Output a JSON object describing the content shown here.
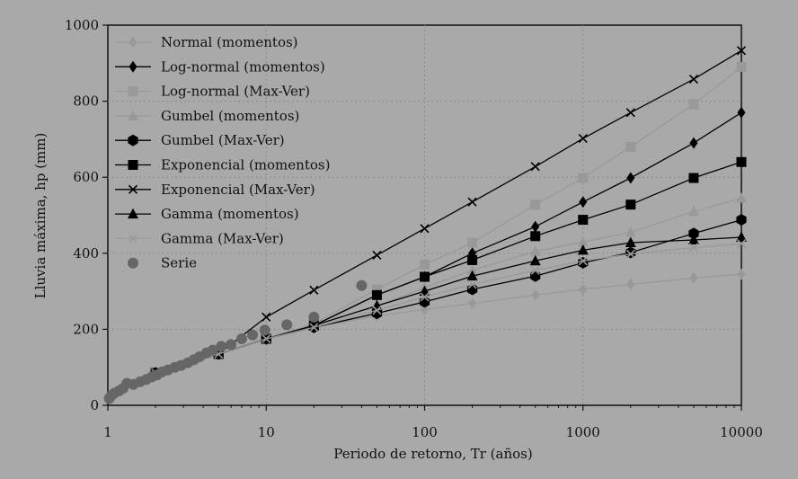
{
  "chart_data": {
    "type": "line",
    "title": "",
    "xlabel": "Periodo de retorno, Tr (años)",
    "ylabel": "Lluvia máxima, hp (mm)",
    "xscale": "log",
    "xlim": [
      1,
      10000
    ],
    "ylim": [
      0,
      1000
    ],
    "x_ticks": [
      1,
      10,
      100,
      1000,
      10000
    ],
    "x_tick_labels": [
      "1",
      "10",
      "100",
      "1000",
      "10000"
    ],
    "y_ticks": [
      0,
      200,
      400,
      600,
      800,
      1000
    ],
    "y_tick_labels": [
      "0",
      "200",
      "400",
      "600",
      "800",
      "1000"
    ],
    "grid": true,
    "legend_position": "top-left",
    "x": [
      2,
      5,
      10,
      20,
      50,
      100,
      200,
      500,
      1000,
      2000,
      5000,
      10000
    ],
    "series": [
      {
        "name": "Normal (momentos)",
        "marker": "diamond",
        "color": "#999999",
        "values": [
          85,
          135,
          175,
          205,
          235,
          252,
          268,
          290,
          305,
          318,
          335,
          345
        ]
      },
      {
        "name": "Log-normal (momentos)",
        "marker": "diamond",
        "color": "#000000",
        "values": [
          85,
          135,
          175,
          210,
          290,
          338,
          400,
          470,
          535,
          598,
          690,
          770
        ]
      },
      {
        "name": "Log-normal (Max-Ver)",
        "marker": "square",
        "color": "#999999",
        "values": [
          85,
          135,
          175,
          215,
          305,
          370,
          428,
          528,
          598,
          680,
          792,
          890
        ]
      },
      {
        "name": "Gumbel (momentos)",
        "marker": "triangle",
        "color": "#999999",
        "values": [
          85,
          135,
          175,
          210,
          260,
          310,
          355,
          405,
          430,
          455,
          510,
          545
        ]
      },
      {
        "name": "Gumbel (Max-Ver)",
        "marker": "hexagon",
        "color": "#000000",
        "values": [
          85,
          135,
          175,
          205,
          242,
          272,
          305,
          340,
          375,
          402,
          452,
          488
        ]
      },
      {
        "name": "Exponencial (momentos)",
        "marker": "square",
        "color": "#000000",
        "values": [
          85,
          135,
          175,
          210,
          290,
          338,
          382,
          445,
          488,
          528,
          598,
          640
        ]
      },
      {
        "name": "Exponencial (Max-Ver)",
        "marker": "x",
        "color": "#000000",
        "values": [
          85,
          135,
          232,
          303,
          395,
          465,
          535,
          628,
          702,
          770,
          858,
          933
        ]
      },
      {
        "name": "Gamma (momentos)",
        "marker": "triangle",
        "color": "#000000",
        "values": [
          85,
          135,
          175,
          210,
          262,
          300,
          340,
          380,
          408,
          428,
          435,
          442
        ]
      },
      {
        "name": "Gamma (Max-Ver)",
        "marker": "x",
        "color": "#999999",
        "values": [
          85,
          135,
          175,
          205,
          250,
          285,
          318,
          355,
          380,
          398,
          415,
          425
        ]
      }
    ],
    "observed": {
      "name": "Serie",
      "marker": "circle",
      "color": "#666666",
      "points": [
        [
          1.02,
          18
        ],
        [
          1.05,
          25
        ],
        [
          1.1,
          32
        ],
        [
          1.18,
          38
        ],
        [
          1.25,
          45
        ],
        [
          1.32,
          58
        ],
        [
          1.45,
          55
        ],
        [
          1.6,
          62
        ],
        [
          1.75,
          68
        ],
        [
          1.9,
          75
        ],
        [
          2.05,
          80
        ],
        [
          2.2,
          88
        ],
        [
          2.4,
          93
        ],
        [
          2.65,
          100
        ],
        [
          2.9,
          105
        ],
        [
          3.2,
          112
        ],
        [
          3.5,
          120
        ],
        [
          3.8,
          128
        ],
        [
          4.2,
          138
        ],
        [
          4.6,
          145
        ],
        [
          5.2,
          155
        ],
        [
          6.0,
          160
        ],
        [
          7.0,
          175
        ],
        [
          8.2,
          185
        ],
        [
          9.8,
          198
        ],
        [
          13.5,
          212
        ],
        [
          20,
          232
        ],
        [
          40,
          315
        ]
      ]
    }
  }
}
